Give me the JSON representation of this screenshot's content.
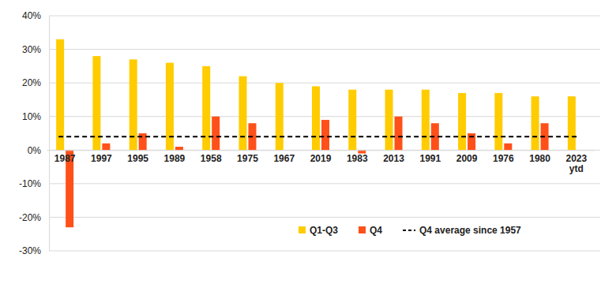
{
  "chart_data": {
    "type": "bar",
    "categories": [
      "1987",
      "1997",
      "1995",
      "1989",
      "1958",
      "1975",
      "1967",
      "2019",
      "1983",
      "2013",
      "1991",
      "2009",
      "1976",
      "1980",
      "2023 ytd"
    ],
    "series": [
      {
        "name": "Q1-Q3",
        "color": "#ffcc00",
        "values": [
          33,
          28,
          27,
          26,
          25,
          22,
          20,
          19,
          18,
          18,
          18,
          17,
          17,
          16,
          16
        ]
      },
      {
        "name": "Q4",
        "color": "#ff5019",
        "values": [
          -23,
          2,
          5,
          1,
          10,
          8,
          0,
          9,
          -1,
          10,
          8,
          5,
          2,
          8,
          null
        ]
      }
    ],
    "reference_lines": [
      {
        "name": "Q4 average since 1957",
        "value": 4,
        "color": "#000000",
        "line_style": "dashed"
      }
    ],
    "ylim": [
      -30,
      40
    ],
    "yticks": [
      {
        "value": -30,
        "label": "-30%"
      },
      {
        "value": -20,
        "label": "-20%"
      },
      {
        "value": -10,
        "label": "-10%"
      },
      {
        "value": 0,
        "label": "0%"
      },
      {
        "value": 10,
        "label": "10%"
      },
      {
        "value": 20,
        "label": "20%"
      },
      {
        "value": 30,
        "label": "30%"
      },
      {
        "value": 40,
        "label": "40%"
      }
    ],
    "grid": true,
    "legend": "bottom"
  }
}
